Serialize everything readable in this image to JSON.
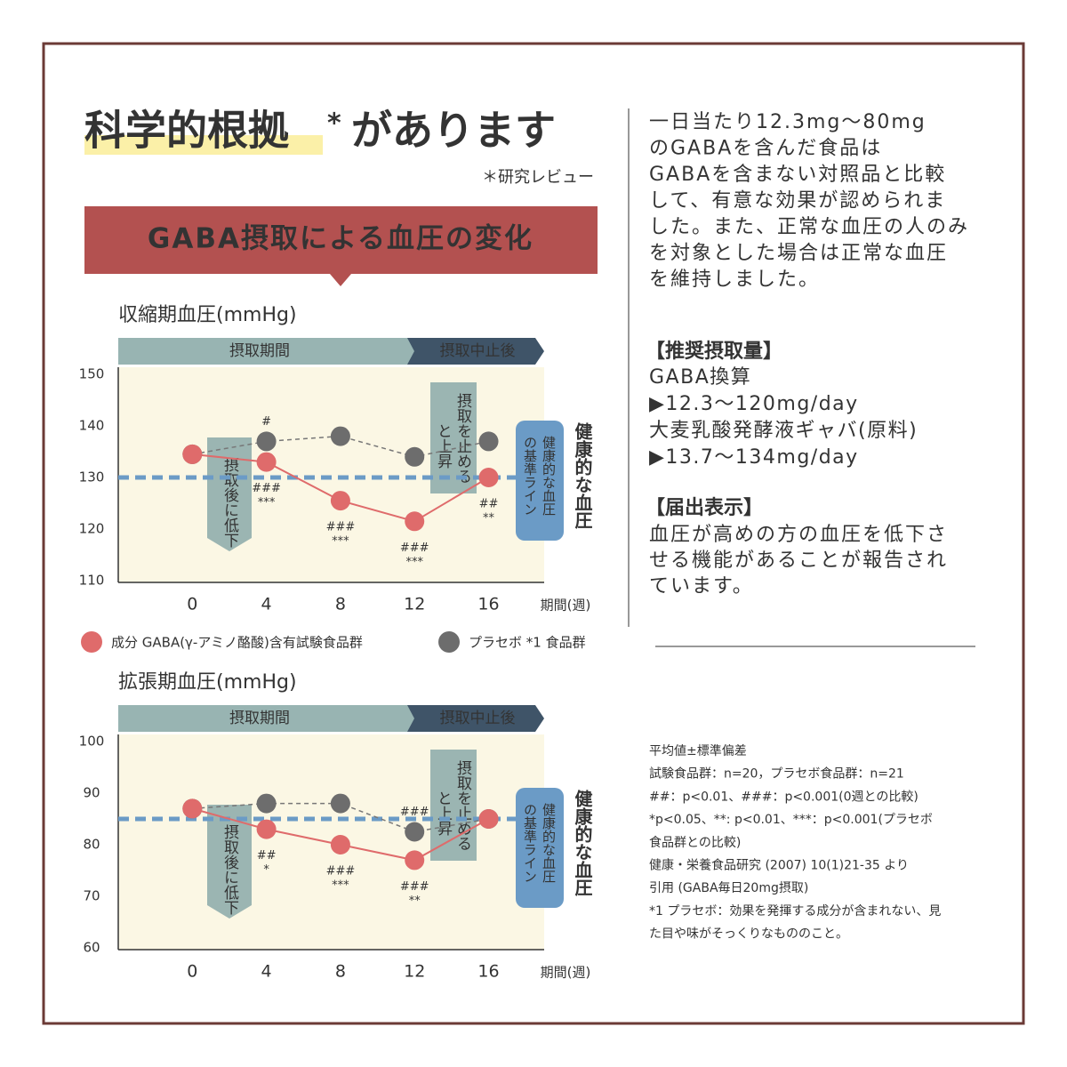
{
  "header": {
    "title_highlight": "科学的根拠",
    "title_mark": "*",
    "title_rest": "があります",
    "note": "＊研究レビュー",
    "banner": "GABA摂取による血圧の変化"
  },
  "description": [
    "一日当たり12.3mg～80mg",
    "のGABAを含んだ食品は",
    "GABAを含まない対照品と比較",
    "して、有意な効果が認められま",
    "した。また、正常な血圧の人のみ",
    "を対象とした場合は正常な血圧",
    "を維持しました。"
  ],
  "recommended": {
    "heading": "【推奨摂取量】",
    "lines": [
      "GABA換算",
      "▶12.3～120mg/day",
      "大麦乳酸発酵液ギャバ(原料)",
      "▶13.7～134mg/day"
    ]
  },
  "claim": {
    "heading": "【届出表示】",
    "lines": [
      "血圧が高めの方の血圧を低下さ",
      "せる機能があることが報告され",
      "ています。"
    ]
  },
  "notes": [
    "平均値±標準偏差",
    "試験食品群：n=20，プラセボ食品群：n=21",
    "##：p<0.01、###：p<0.001(0週との比較)",
    "*p<0.05、**: p<0.01、***：p<0.001(プラセボ",
    "食品群との比較)",
    "健康・栄養食品研究 (2007) 10(1)21-35 より",
    "引用 (GABA毎日20mg摂取)",
    "*1 プラセボ：効果を発揮する成分が含まれない、見",
    "た目や味がそっくりなもののこと。"
  ],
  "chart_data": [
    {
      "type": "line",
      "title": "収縮期血圧(mmHg)",
      "periods": [
        "摂取期間",
        "摂取中止後"
      ],
      "x_label": "期間(週)",
      "x": [
        0,
        4,
        8,
        12,
        16
      ],
      "xticks": [
        0,
        4,
        8,
        12,
        16
      ],
      "xlim": [
        -4,
        19
      ],
      "ylim": [
        110,
        150
      ],
      "yticks": [
        110,
        120,
        130,
        140,
        150
      ],
      "reference": {
        "value": 130,
        "color": "#6b9bc6",
        "label": "健康的な血圧",
        "box_label": [
          "健康的な血圧",
          "の基準ライン"
        ]
      },
      "callouts": {
        "down": "摂取後に低下",
        "up": [
          "摂取を止める",
          "と上昇"
        ]
      },
      "series": [
        {
          "name": "成分 GABA(γ-アミノ酪酸)含有試験食品群",
          "color": "#df6b6b",
          "values": [
            134.5,
            133,
            125.5,
            121.5,
            130
          ],
          "sig_labels": [
            null,
            [
              "###",
              "***"
            ],
            [
              "###",
              "***"
            ],
            [
              "###",
              "***"
            ],
            [
              "##",
              "**"
            ]
          ]
        },
        {
          "name": "プラセボ *1 食品群",
          "color": "#6d6d6d",
          "values": [
            134.5,
            137,
            138,
            134,
            137
          ],
          "sig_labels": [
            null,
            [
              "#"
            ],
            null,
            null,
            null
          ]
        }
      ]
    },
    {
      "type": "line",
      "title": "拡張期血圧(mmHg)",
      "periods": [
        "摂取期間",
        "摂取中止後"
      ],
      "x_label": "期間(週)",
      "x": [
        0,
        4,
        8,
        12,
        16
      ],
      "xticks": [
        0,
        4,
        8,
        12,
        16
      ],
      "xlim": [
        -4,
        19
      ],
      "ylim": [
        60,
        100
      ],
      "yticks": [
        60,
        70,
        80,
        90,
        100
      ],
      "reference": {
        "value": 85,
        "color": "#6b9bc6",
        "label": "健康的な血圧",
        "box_label": [
          "健康的な血圧",
          "の基準ライン"
        ]
      },
      "callouts": {
        "down": "摂取後に低下",
        "up": [
          "摂取を止める",
          "と上昇"
        ]
      },
      "series": [
        {
          "color": "#df6b6b",
          "values": [
            87,
            83,
            80,
            77,
            85
          ],
          "sig_labels": [
            null,
            [
              "##",
              "*"
            ],
            [
              "###",
              "***"
            ],
            [
              "###",
              "**"
            ],
            null
          ]
        },
        {
          "color": "#6d6d6d",
          "values": [
            87,
            88,
            88,
            82.5,
            85
          ],
          "sig_labels": [
            null,
            null,
            null,
            [
              "###"
            ],
            null
          ]
        }
      ]
    }
  ]
}
